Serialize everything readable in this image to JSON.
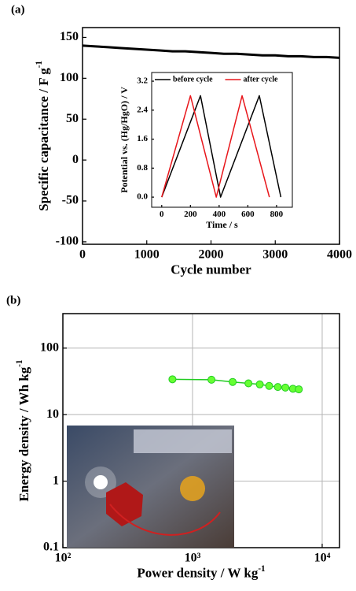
{
  "chart_data": [
    {
      "type": "line",
      "panel_label": "(a)",
      "xlabel": "Cycle number",
      "ylabel": [
        "Specific capacitance / F g",
        "-1"
      ],
      "x": [
        0,
        200,
        400,
        600,
        800,
        1000,
        1200,
        1400,
        1600,
        1800,
        2000,
        2200,
        2400,
        2600,
        2800,
        3000,
        3200,
        3400,
        3600,
        3800,
        4000
      ],
      "series": [
        {
          "color": "#000000",
          "values": [
            140,
            139,
            138,
            137,
            136,
            135,
            134,
            133,
            133,
            132,
            131,
            130,
            130,
            129,
            128,
            128,
            127,
            127,
            126,
            126,
            125
          ]
        }
      ],
      "xlim": [
        0,
        4000
      ],
      "xticks": [
        0,
        1000,
        2000,
        3000,
        4000
      ],
      "ylim": [
        -103,
        162
      ],
      "yticks": [
        -100,
        -50,
        0,
        50,
        100,
        150
      ]
    },
    {
      "type": "line",
      "xlabel": "Time / s",
      "ylabel": "Potential vs. (Hg/HgO) / V",
      "series": [
        {
          "name": "before cycle",
          "color": "#000000",
          "x": [
            0,
            270,
            410,
            680,
            830
          ],
          "values": [
            0,
            2.8,
            0,
            2.8,
            0
          ]
        },
        {
          "name": "after cycle",
          "color": "#e8161b",
          "x": [
            0,
            200,
            380,
            560,
            750
          ],
          "values": [
            0,
            2.8,
            0,
            2.8,
            0
          ]
        }
      ],
      "xlim": [
        -70,
        910
      ],
      "xticks": [
        0,
        200,
        400,
        600,
        800
      ],
      "ylim": [
        -0.28,
        3.44
      ],
      "yticks": [
        {
          "value": 0,
          "label": "0.0"
        },
        0.8,
        1.6,
        2.4,
        3.2
      ],
      "legend": "top"
    },
    {
      "type": "line",
      "panel_label": "(b)",
      "xlabel": [
        "Power density / W kg",
        "-1"
      ],
      "ylabel": [
        "Energy density / Wh kg",
        "-1"
      ],
      "xscale": "log",
      "yscale": "log",
      "grid": true,
      "series": [
        {
          "color": "#22cc22",
          "marker_color": "#66ff33",
          "x": [
            700,
            1400,
            2040,
            2700,
            3300,
            3900,
            4550,
            5200,
            5950,
            6600
          ],
          "values": [
            34,
            33.5,
            31,
            29.5,
            28.5,
            27,
            26,
            25.5,
            24.5,
            24
          ]
        }
      ],
      "xlim": [
        100,
        13600
      ],
      "xticks": [
        {
          "value": 100,
          "label": "10²"
        },
        {
          "value": 1000,
          "label": "10³"
        },
        {
          "value": 10000,
          "label": "10⁴"
        }
      ],
      "ylim": [
        0.1,
        330
      ],
      "yticks": [
        0.1,
        1,
        10,
        100
      ]
    }
  ]
}
